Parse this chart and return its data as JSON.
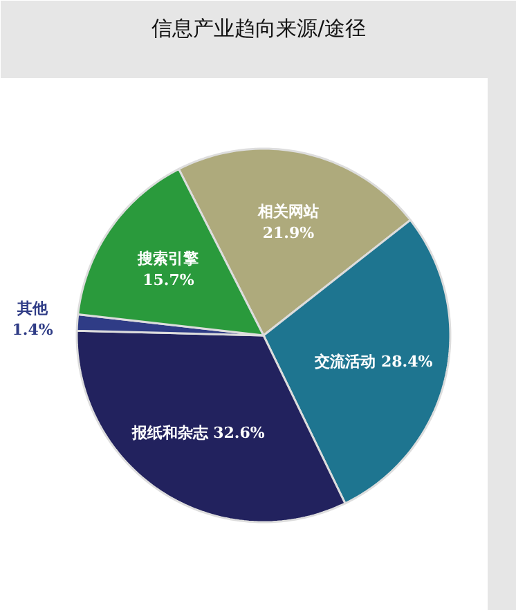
{
  "chart_data": {
    "type": "pie",
    "title": "信息产业趋向来源/途径",
    "categories": [
      "相关网站",
      "交流活动",
      "报纸和杂志",
      "其他",
      "搜索引擎"
    ],
    "values": [
      21.9,
      28.4,
      32.6,
      1.4,
      15.7
    ],
    "value_labels": [
      "21.9%",
      "28.4%",
      "32.6%",
      "1.4%",
      "15.7%"
    ],
    "colors": [
      "#aeaa7c",
      "#1e7590",
      "#22225e",
      "#2f3c86",
      "#2a9a3c"
    ]
  }
}
